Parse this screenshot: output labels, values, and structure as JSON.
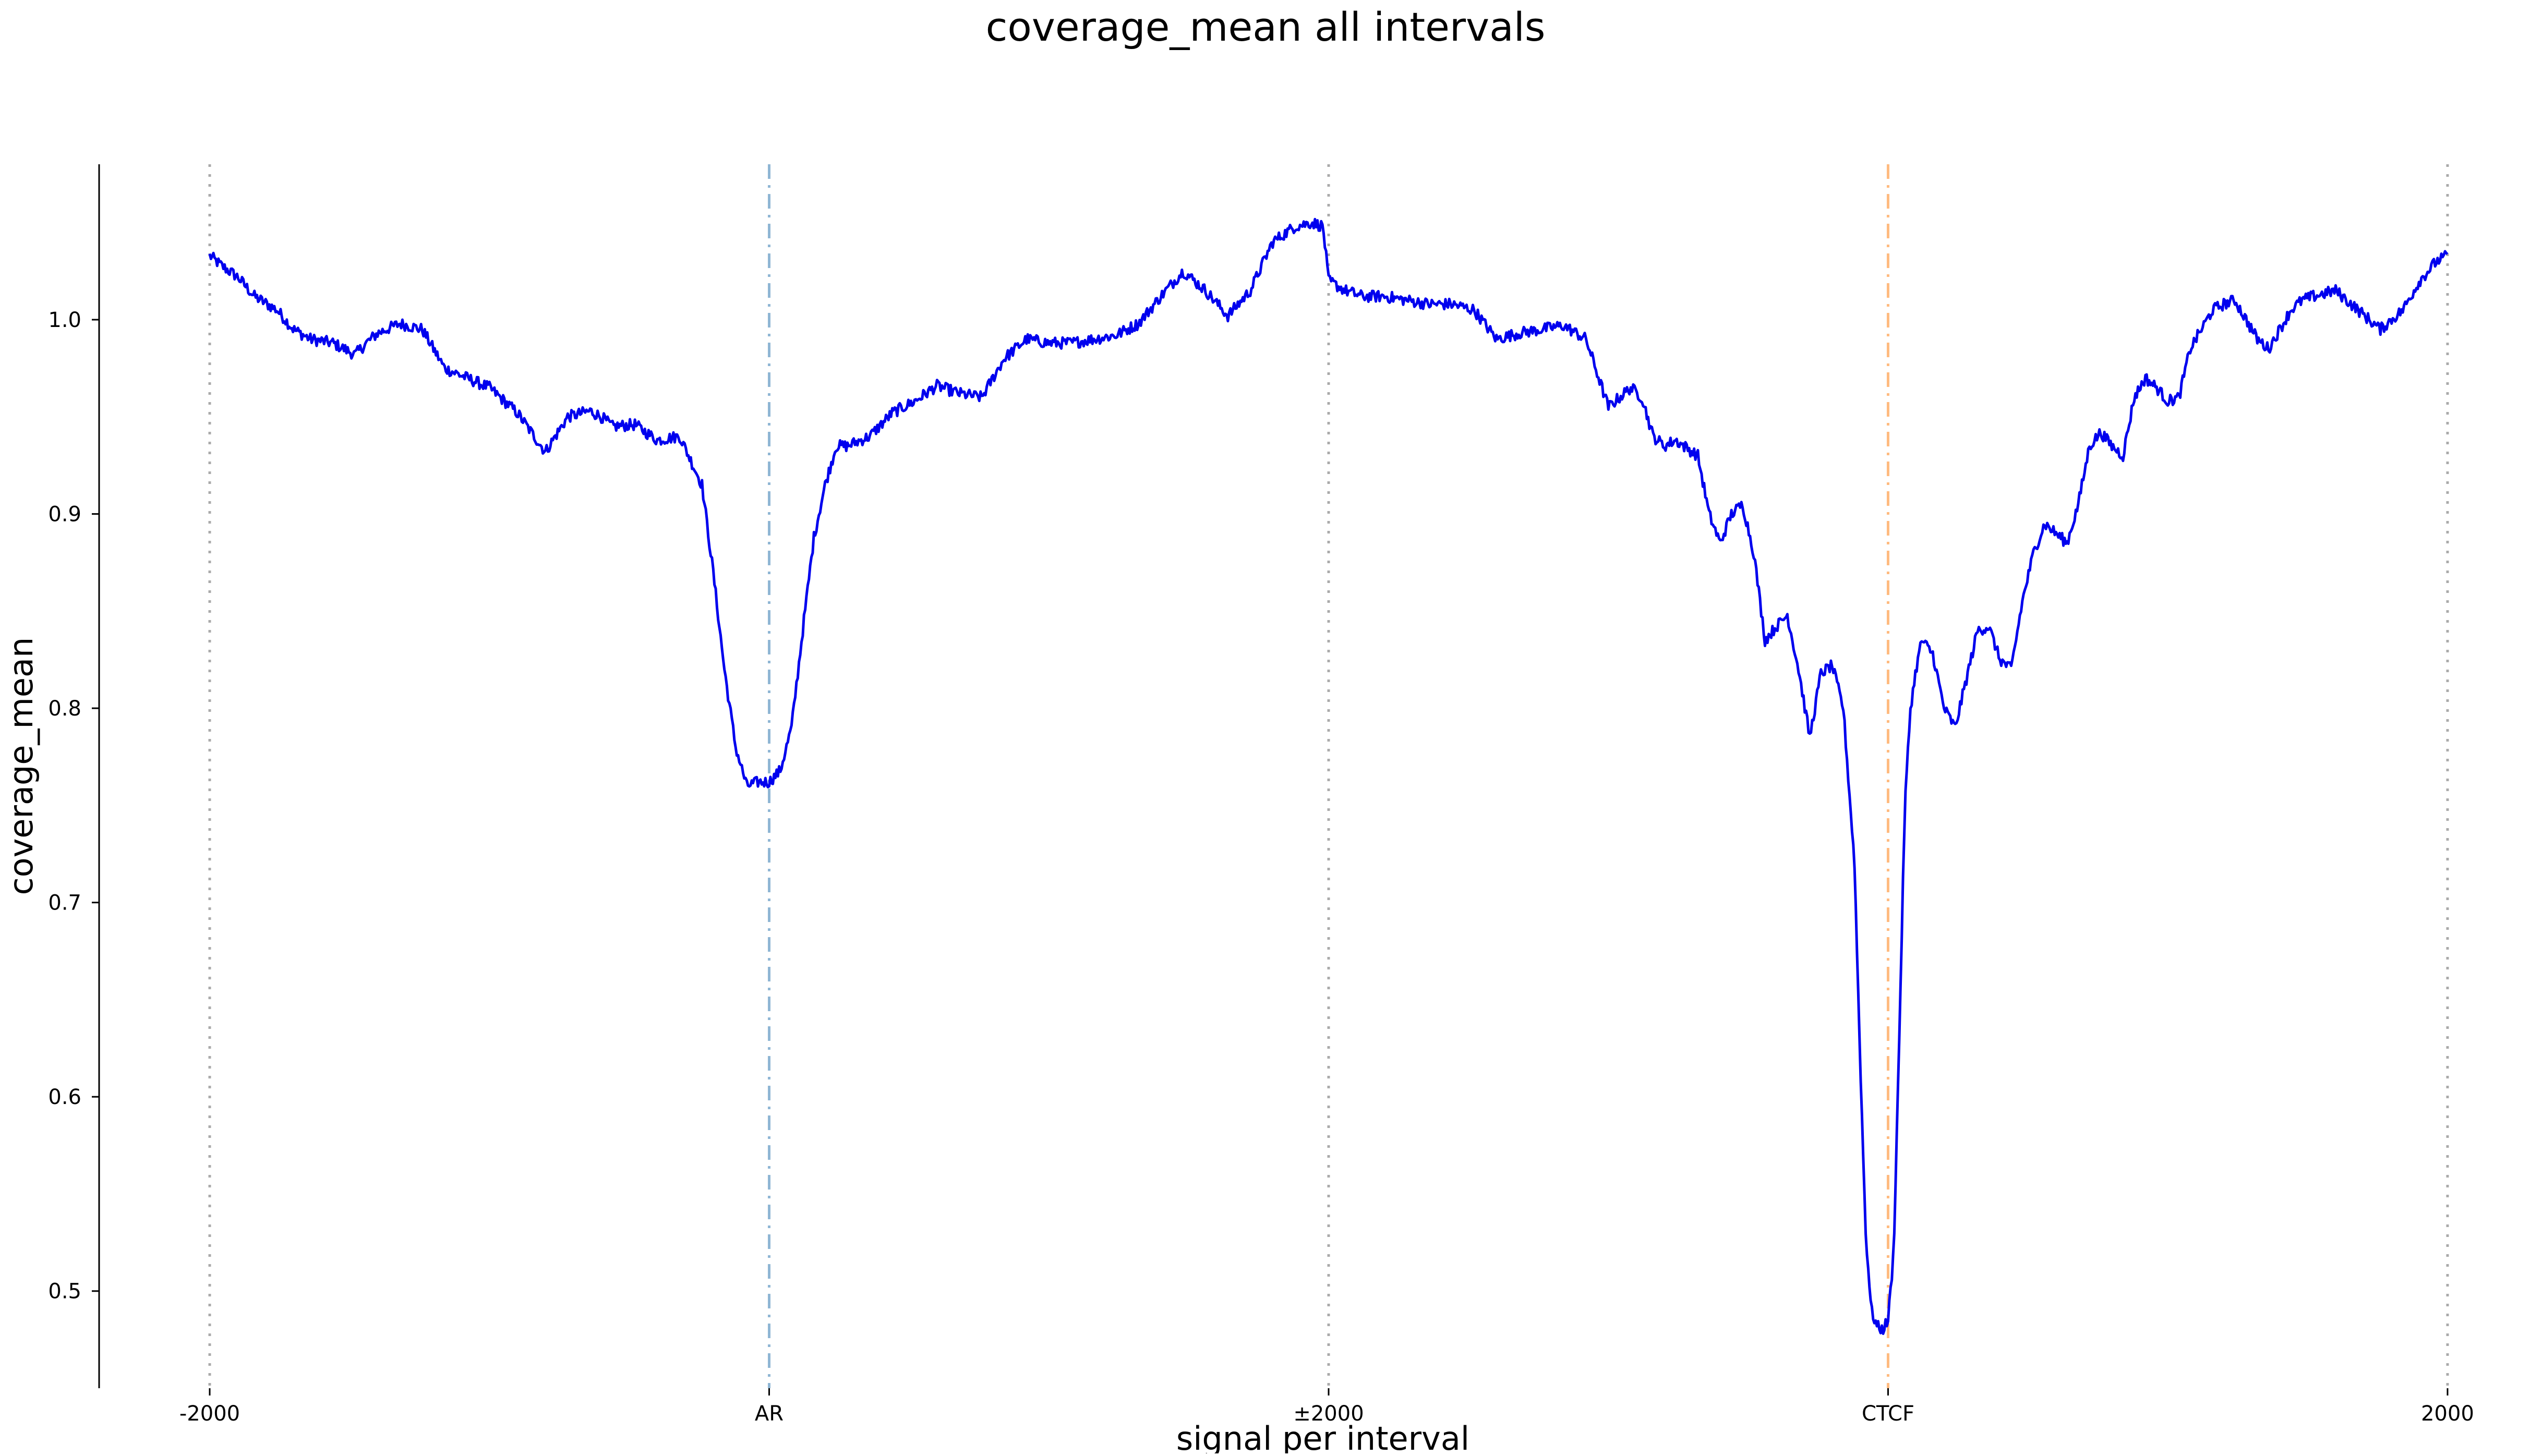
{
  "chart_data": {
    "type": "line",
    "title": "coverage_mean all intervals",
    "xlabel": "signal per interval",
    "ylabel": "coverage_mean",
    "xlim": [
      0,
      4
    ],
    "ylim": [
      0.45,
      1.08
    ],
    "grid": false,
    "legend": "none",
    "x_ticks": [
      {
        "x": 0,
        "label": "-2000"
      },
      {
        "x": 1,
        "label": "AR"
      },
      {
        "x": 2,
        "label": "±2000"
      },
      {
        "x": 3,
        "label": "CTCF"
      },
      {
        "x": 4,
        "label": "2000"
      }
    ],
    "y_ticks": [
      {
        "y": 0.5,
        "label": "0.5"
      },
      {
        "y": 0.6,
        "label": "0.6"
      },
      {
        "y": 0.7,
        "label": "0.7"
      },
      {
        "y": 0.8,
        "label": "0.8"
      },
      {
        "y": 0.9,
        "label": "0.9"
      },
      {
        "y": 1.0,
        "label": "1.0"
      }
    ],
    "reference_lines": [
      {
        "x": 0,
        "style": "dotted",
        "color": "#aaaaaa"
      },
      {
        "x": 1,
        "style": "dashdot",
        "color": "#8fb6d4"
      },
      {
        "x": 2,
        "style": "dotted",
        "color": "#aaaaaa"
      },
      {
        "x": 3,
        "style": "dashdot",
        "color": "#ffbb80"
      },
      {
        "x": 4,
        "style": "dotted",
        "color": "#aaaaaa"
      }
    ],
    "series": [
      {
        "color": "#0000ee",
        "x": [
          0,
          0.02,
          0.05,
          0.08,
          0.12,
          0.15,
          0.18,
          0.22,
          0.26,
          0.28,
          0.3,
          0.34,
          0.38,
          0.42,
          0.46,
          0.5,
          0.55,
          0.6,
          0.64,
          0.68,
          0.7,
          0.72,
          0.76,
          0.8,
          0.84,
          0.88,
          0.9,
          0.92,
          0.94,
          0.96,
          0.98,
          1.0,
          1.02,
          1.04,
          1.06,
          1.08,
          1.1,
          1.12,
          1.14,
          1.18,
          1.22,
          1.26,
          1.3,
          1.34,
          1.38,
          1.42,
          1.46,
          1.5,
          1.54,
          1.58,
          1.62,
          1.66,
          1.7,
          1.74,
          1.78,
          1.82,
          1.86,
          1.9,
          1.94,
          1.97,
          1.99,
          2.0,
          2.03,
          2.06,
          2.1,
          2.14,
          2.18,
          2.22,
          2.26,
          2.3,
          2.34,
          2.38,
          2.42,
          2.46,
          2.5,
          2.54,
          2.56,
          2.58,
          2.6,
          2.62,
          2.66,
          2.68,
          2.7,
          2.72,
          2.74,
          2.76,
          2.78,
          2.8,
          2.82,
          2.84,
          2.86,
          2.88,
          2.9,
          2.92,
          2.94,
          2.95,
          2.96,
          2.97,
          2.98,
          2.99,
          3.0,
          3.01,
          3.02,
          3.03,
          3.04,
          3.05,
          3.06,
          3.08,
          3.1,
          3.12,
          3.14,
          3.16,
          3.18,
          3.2,
          3.22,
          3.24,
          3.26,
          3.28,
          3.3,
          3.32,
          3.34,
          3.36,
          3.38,
          3.4,
          3.42,
          3.44,
          3.46,
          3.48,
          3.5,
          3.52,
          3.54,
          3.56,
          3.58,
          3.6,
          3.62,
          3.64,
          3.66,
          3.68,
          3.7,
          3.72,
          3.74,
          3.76,
          3.8,
          3.84,
          3.88,
          3.92,
          3.95,
          3.98,
          4.0
        ],
        "y": [
          1.033,
          1.028,
          1.022,
          1.012,
          1.005,
          0.995,
          0.99,
          0.988,
          0.982,
          0.988,
          0.993,
          0.998,
          0.995,
          0.975,
          0.97,
          0.965,
          0.952,
          0.932,
          0.95,
          0.953,
          0.95,
          0.945,
          0.946,
          0.938,
          0.94,
          0.915,
          0.87,
          0.82,
          0.78,
          0.76,
          0.762,
          0.762,
          0.768,
          0.79,
          0.84,
          0.888,
          0.915,
          0.935,
          0.935,
          0.94,
          0.952,
          0.958,
          0.966,
          0.962,
          0.96,
          0.98,
          0.99,
          0.988,
          0.988,
          0.99,
          0.992,
          0.998,
          1.012,
          1.025,
          1.015,
          1.002,
          1.015,
          1.04,
          1.048,
          1.05,
          1.048,
          1.02,
          1.015,
          1.012,
          1.012,
          1.01,
          1.008,
          1.008,
          1.005,
          0.99,
          0.993,
          0.995,
          0.997,
          0.99,
          0.955,
          0.965,
          0.96,
          0.94,
          0.935,
          0.938,
          0.93,
          0.9,
          0.885,
          0.9,
          0.905,
          0.88,
          0.835,
          0.842,
          0.848,
          0.82,
          0.785,
          0.818,
          0.822,
          0.8,
          0.72,
          0.62,
          0.53,
          0.49,
          0.482,
          0.48,
          0.485,
          0.52,
          0.63,
          0.75,
          0.8,
          0.82,
          0.835,
          0.828,
          0.8,
          0.79,
          0.815,
          0.84,
          0.842,
          0.825,
          0.82,
          0.855,
          0.88,
          0.895,
          0.89,
          0.885,
          0.905,
          0.935,
          0.942,
          0.935,
          0.93,
          0.96,
          0.97,
          0.965,
          0.958,
          0.96,
          0.985,
          0.995,
          1.005,
          1.008,
          1.01,
          1.0,
          0.99,
          0.985,
          0.995,
          1.005,
          1.01,
          1.012,
          1.015,
          1.005,
          0.995,
          1.005,
          1.02,
          1.03,
          1.033
        ]
      }
    ]
  }
}
